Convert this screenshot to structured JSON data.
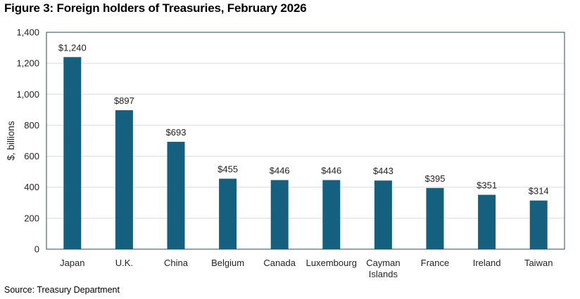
{
  "title": "Figure 3: Foreign holders of Treasuries, February 2026",
  "source": "Source: Treasury Department",
  "chart_data": {
    "type": "bar",
    "title": "Figure 3: Foreign holders of Treasuries, February 2026",
    "xlabel": "",
    "ylabel": "$, billions",
    "ylim": [
      0,
      1400
    ],
    "yticks": [
      0,
      200,
      400,
      600,
      800,
      1000,
      1200,
      1400
    ],
    "ytick_labels": [
      "0",
      "200",
      "400",
      "600",
      "800",
      "1,000",
      "1,200",
      "1,400"
    ],
    "grid": true,
    "categories": [
      [
        "Japan"
      ],
      [
        "U.K."
      ],
      [
        "China"
      ],
      [
        "Belgium"
      ],
      [
        "Canada"
      ],
      [
        "Luxembourg"
      ],
      [
        "Cayman",
        "Islands"
      ],
      [
        "France"
      ],
      [
        "Ireland"
      ],
      [
        "Taiwan"
      ]
    ],
    "values": [
      1240,
      897,
      693,
      455,
      446,
      446,
      443,
      395,
      351,
      314
    ],
    "data_labels": [
      "$1,240",
      "$897",
      "$693",
      "$455",
      "$446",
      "$446",
      "$443",
      "$395",
      "$351",
      "$314"
    ],
    "bar_color": "#15607f",
    "frame_color": "#1e4d66",
    "grid_color": "#d9d9d9"
  }
}
